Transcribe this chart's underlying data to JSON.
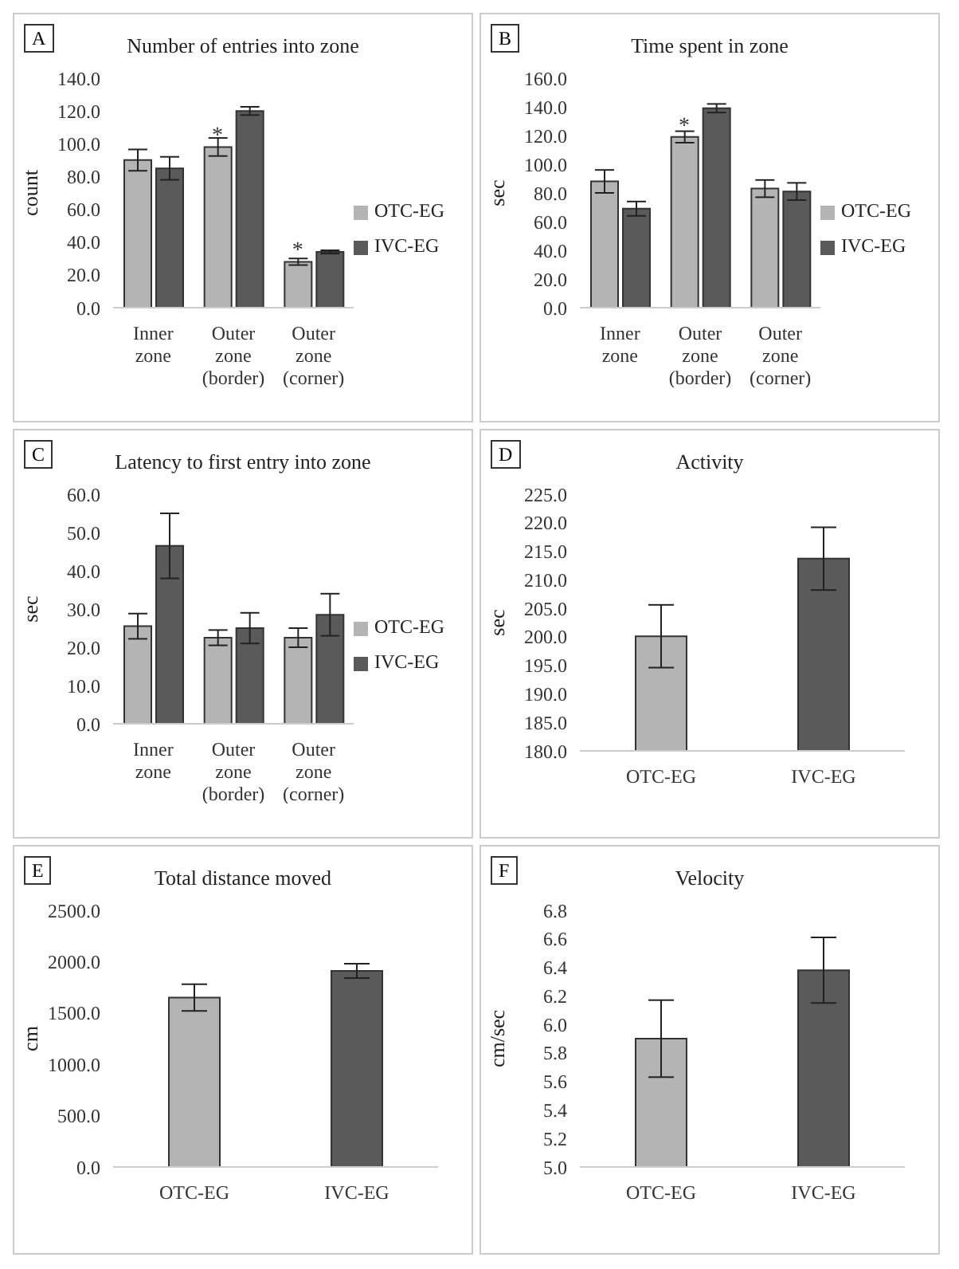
{
  "chart_data": [
    {
      "type": "bar",
      "title": "Number of entries into zone",
      "ylabel": "count",
      "annotations": [
        "A",
        {
          "text": "*",
          "x": "Outer zone (border)",
          "y": 106
        },
        {
          "text": "*",
          "x": "Outer zone (corner)",
          "y": 36
        }
      ],
      "categories": [
        "Inner zone",
        "Outer zone (border)",
        "Outer zone (corner)"
      ],
      "series": [
        {
          "name": "OTC-EG",
          "color": "#b4b4b4",
          "values": [
            90,
            98,
            28
          ],
          "errors": [
            6.5,
            5.5,
            2
          ]
        },
        {
          "name": "IVC-EG",
          "color": "#5a5a5a",
          "values": [
            85,
            120,
            34
          ],
          "errors": [
            7,
            2.5,
            1
          ]
        }
      ],
      "ylim": [
        0,
        140
      ],
      "yticks": [
        {
          "value": 0,
          "label": "0.0"
        },
        {
          "value": 20,
          "label": "20.0"
        },
        {
          "value": 40,
          "label": "40.0"
        },
        {
          "value": 60,
          "label": "60.0"
        },
        {
          "value": 80,
          "label": "80.0"
        },
        {
          "value": 100,
          "label": "100.0"
        },
        {
          "value": 120,
          "label": "120.0"
        },
        {
          "value": 140,
          "label": "140.0"
        }
      ],
      "legend": "right"
    },
    {
      "type": "bar",
      "title": "Time spent in zone",
      "ylabel": "sec",
      "annotations": [
        "B",
        {
          "text": "*",
          "x": "Outer zone (border)",
          "y": 128
        }
      ],
      "categories": [
        "Inner zone",
        "Outer zone (border)",
        "Outer zone (corner)"
      ],
      "series": [
        {
          "name": "OTC-EG",
          "color": "#b4b4b4",
          "values": [
            88,
            119,
            83
          ],
          "errors": [
            8,
            4,
            6
          ]
        },
        {
          "name": "IVC-EG",
          "color": "#5a5a5a",
          "values": [
            69,
            139,
            81
          ],
          "errors": [
            5,
            3,
            6
          ]
        }
      ],
      "ylim": [
        0,
        160
      ],
      "yticks": [
        {
          "value": 0,
          "label": "0.0"
        },
        {
          "value": 20,
          "label": "20.0"
        },
        {
          "value": 40,
          "label": "40.0"
        },
        {
          "value": 60,
          "label": "60.0"
        },
        {
          "value": 80,
          "label": "80.0"
        },
        {
          "value": 100,
          "label": "100.0"
        },
        {
          "value": 120,
          "label": "120.0"
        },
        {
          "value": 140,
          "label": "140.0"
        },
        {
          "value": 160,
          "label": "160.0"
        }
      ],
      "legend": "right"
    },
    {
      "type": "bar",
      "title": "Latency to first entry into zone",
      "ylabel": "sec",
      "annotations": [
        "C"
      ],
      "categories": [
        "Inner zone",
        "Outer zone (border)",
        "Outer zone (corner)"
      ],
      "series": [
        {
          "name": "OTC-EG",
          "color": "#b4b4b4",
          "values": [
            25.5,
            22.5,
            22.5
          ],
          "errors": [
            3.3,
            2,
            2.5
          ]
        },
        {
          "name": "IVC-EG",
          "color": "#5a5a5a",
          "values": [
            46.5,
            25,
            28.5
          ],
          "errors": [
            8.5,
            4,
            5.5
          ]
        }
      ],
      "ylim": [
        0,
        60
      ],
      "yticks": [
        {
          "value": 0,
          "label": "0.0"
        },
        {
          "value": 10,
          "label": "10.0"
        },
        {
          "value": 20,
          "label": "20.0"
        },
        {
          "value": 30,
          "label": "30.0"
        },
        {
          "value": 40,
          "label": "40.0"
        },
        {
          "value": 50,
          "label": "50.0"
        },
        {
          "value": 60,
          "label": "60.0"
        }
      ],
      "legend": "right"
    },
    {
      "type": "bar",
      "title": "Activity",
      "ylabel": "sec",
      "annotations": [
        "D"
      ],
      "categories": [
        "OTC-EG",
        "IVC-EG"
      ],
      "values": [
        200.1,
        213.7
      ],
      "colors": [
        "#b4b4b4",
        "#5a5a5a"
      ],
      "errors": [
        5.5,
        5.5
      ],
      "ylim": [
        180,
        225
      ],
      "yticks": [
        {
          "value": 180,
          "label": "180.0"
        },
        {
          "value": 185,
          "label": "185.0"
        },
        {
          "value": 190,
          "label": "190.0"
        },
        {
          "value": 195,
          "label": "195.0"
        },
        {
          "value": 200,
          "label": "200.0"
        },
        {
          "value": 205,
          "label": "205.0"
        },
        {
          "value": 210,
          "label": "210.0"
        },
        {
          "value": 215,
          "label": "215.0"
        },
        {
          "value": 220,
          "label": "220.0"
        },
        {
          "value": 225,
          "label": "225.0"
        }
      ]
    },
    {
      "type": "bar",
      "title": "Total distance moved",
      "ylabel": "cm",
      "annotations": [
        "E"
      ],
      "categories": [
        "OTC-EG",
        "IVC-EG"
      ],
      "values": [
        1650,
        1910
      ],
      "colors": [
        "#b4b4b4",
        "#5a5a5a"
      ],
      "errors": [
        130,
        70
      ],
      "ylim": [
        0,
        2500
      ],
      "yticks": [
        {
          "value": 0,
          "label": "0.0"
        },
        {
          "value": 500,
          "label": "500.0"
        },
        {
          "value": 1000,
          "label": "1000.0"
        },
        {
          "value": 1500,
          "label": "1500.0"
        },
        {
          "value": 2000,
          "label": "2000.0"
        },
        {
          "value": 2500,
          "label": "2500.0"
        }
      ]
    },
    {
      "type": "bar",
      "title": "Velocity",
      "ylabel": "cm/sec",
      "annotations": [
        "F"
      ],
      "categories": [
        "OTC-EG",
        "IVC-EG"
      ],
      "values": [
        5.9,
        6.38
      ],
      "colors": [
        "#b4b4b4",
        "#5a5a5a"
      ],
      "errors": [
        0.27,
        0.23
      ],
      "ylim": [
        5,
        6.8
      ],
      "yticks": [
        {
          "value": 5,
          "label": "5.0"
        },
        {
          "value": 5.2,
          "label": "5.2"
        },
        {
          "value": 5.4,
          "label": "5.4"
        },
        {
          "value": 5.6,
          "label": "5.6"
        },
        {
          "value": 5.8,
          "label": "5.8"
        },
        {
          "value": 6,
          "label": "6.0"
        },
        {
          "value": 6.2,
          "label": "6.2"
        },
        {
          "value": 6.4,
          "label": "6.4"
        },
        {
          "value": 6.6,
          "label": "6.6"
        },
        {
          "value": 6.8,
          "label": "6.8"
        }
      ]
    }
  ]
}
